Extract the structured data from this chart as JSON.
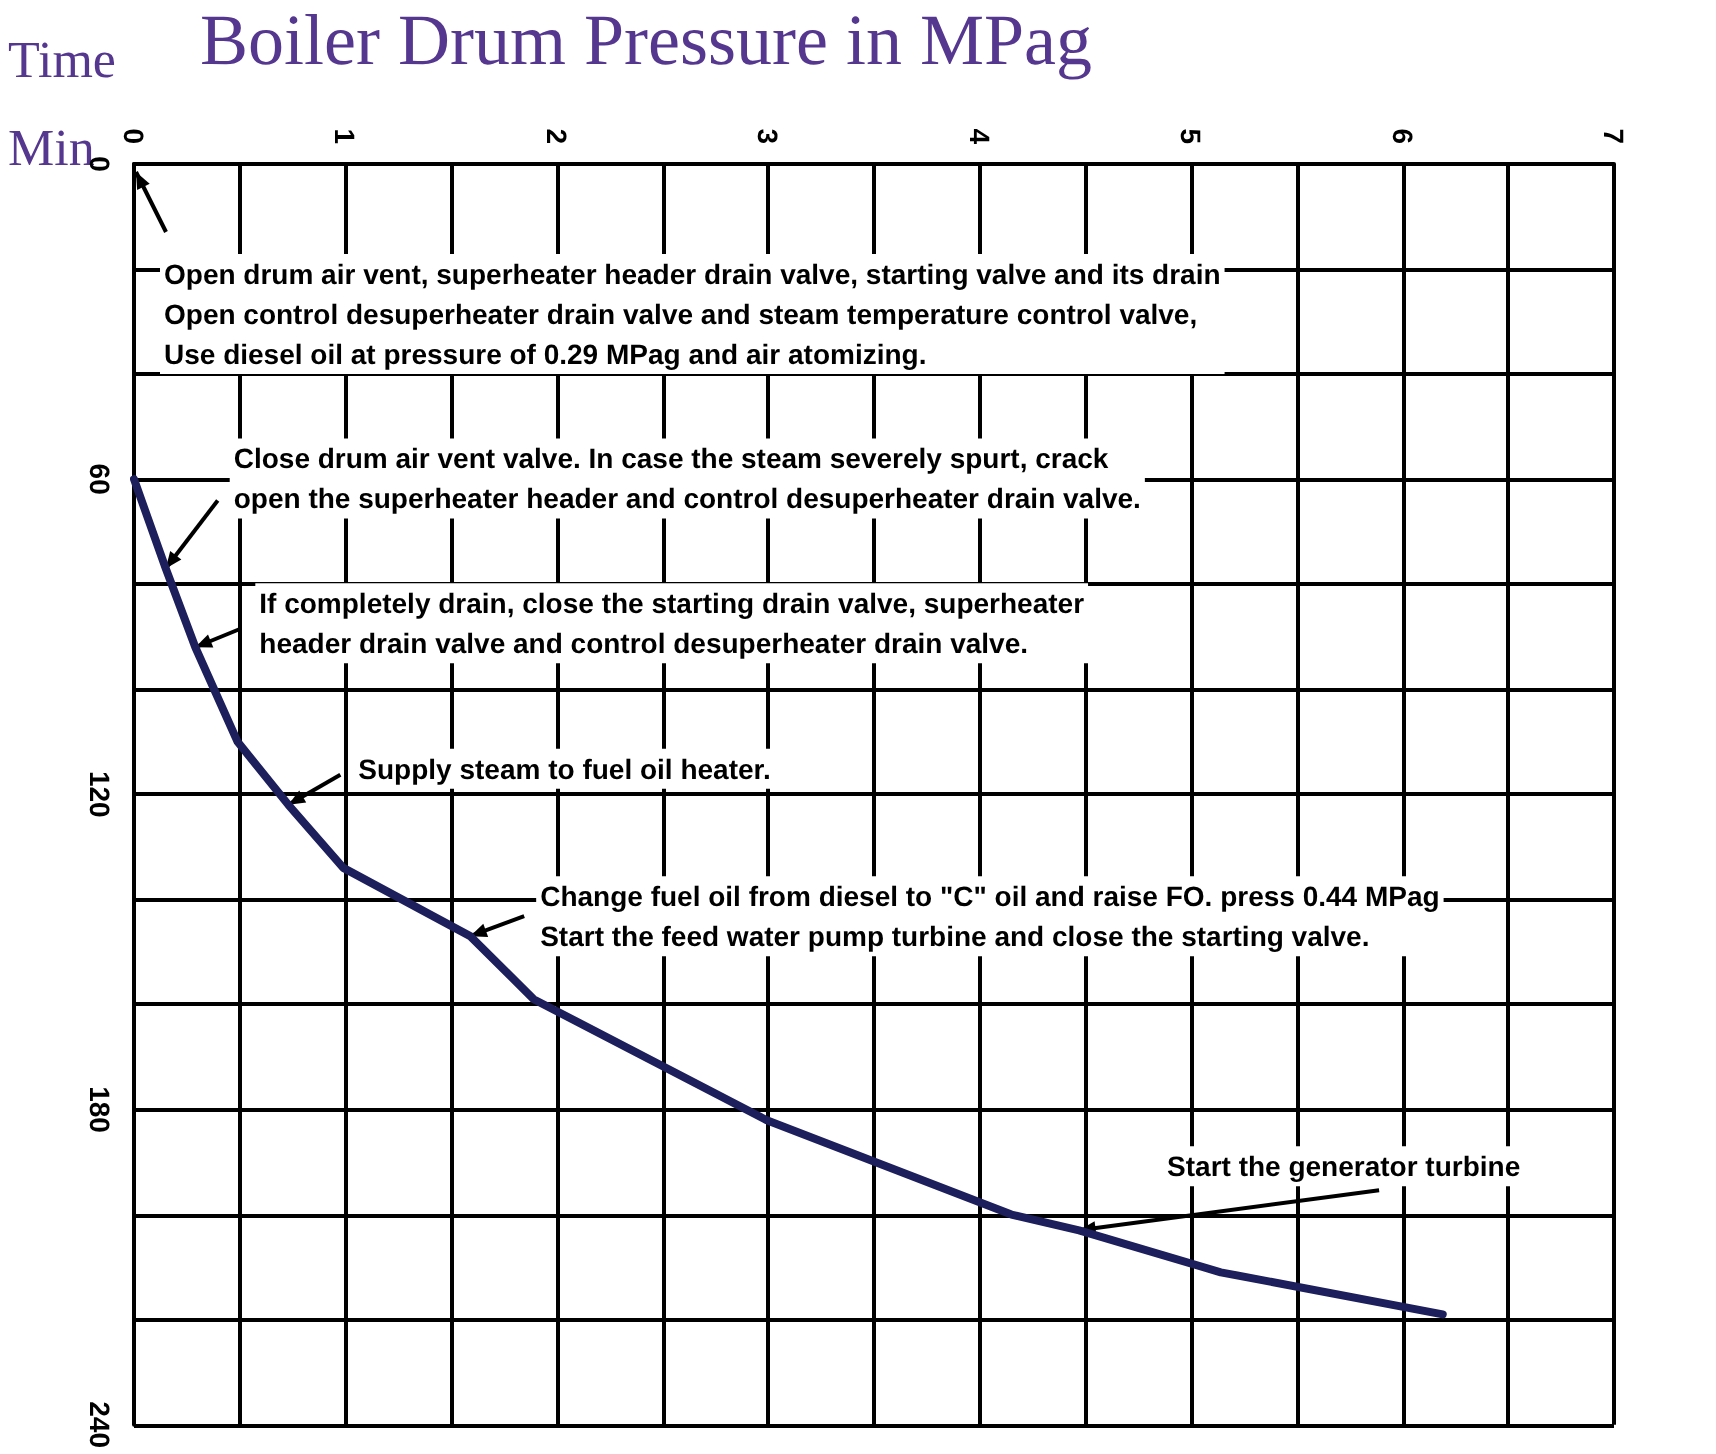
{
  "chart_data": {
    "type": "line",
    "xlabel": "Boiler Drum Pressure in MPag",
    "ylabel": "Time\nMin",
    "x": [
      0,
      0.15,
      0.29,
      0.49,
      0.73,
      0.99,
      1.59,
      1.89,
      2.99,
      4.15,
      4.47,
      5.14,
      6.19
    ],
    "series": [
      {
        "color": "#1c1f5c",
        "values": [
          60,
          77,
          92,
          110,
          122,
          134,
          147,
          159,
          182,
          200,
          203,
          211,
          219
        ]
      }
    ],
    "xlim": [
      0,
      7
    ],
    "xticks": [
      0,
      {
        "value": 0.5,
        "label": null
      },
      1,
      {
        "value": 1.5,
        "label": null
      },
      2,
      {
        "value": 2.5,
        "label": null
      },
      3,
      {
        "value": 3.5,
        "label": null
      },
      4,
      {
        "value": 4.5,
        "label": null
      },
      5,
      {
        "value": 5.5,
        "label": null
      },
      6,
      {
        "value": 6.5,
        "label": null
      },
      7
    ],
    "ylim": [
      240,
      0
    ],
    "yticks": [
      0,
      {
        "value": 20,
        "label": null
      },
      {
        "value": 40,
        "label": null
      },
      60,
      {
        "value": 80,
        "label": null
      },
      {
        "value": 100,
        "label": null
      },
      120,
      {
        "value": 140,
        "label": null
      },
      {
        "value": 160,
        "label": null
      },
      180,
      {
        "value": 200,
        "label": null
      },
      {
        "value": 220,
        "label": null
      },
      240
    ],
    "grid": true,
    "marker": "none",
    "line_style": "solid",
    "annotations": [
      "Open drum air vent, superheater header drain valve, starting valve and its drain\nOpen control desuperheater drain valve and steam temperature control valve,\nUse diesel oil at pressure of 0.29 MPag and air atomizing.",
      {
        "text": "Close drum air vent valve. In case the steam severely spurt, crack\nopen the superheater header and control desuperheater drain valve.",
        "x": 0.15,
        "y": 77
      },
      {
        "text": "If completely drain, close the starting drain valve, superheater\nheader drain valve and control desuperheater drain valve.",
        "x": 0.29,
        "y": 92
      },
      {
        "text": "Supply steam to fuel oil heater.",
        "x": 0.73,
        "y": 122
      },
      {
        "text": "Change fuel oil from diesel to \"C\" oil and raise FO. press 0.44 MPag\nStart the feed water pump turbine and close the starting valve.",
        "x": 1.59,
        "y": 147
      },
      {
        "text": "Start the generator turbine",
        "x": 4.47,
        "y": 203
      }
    ]
  }
}
